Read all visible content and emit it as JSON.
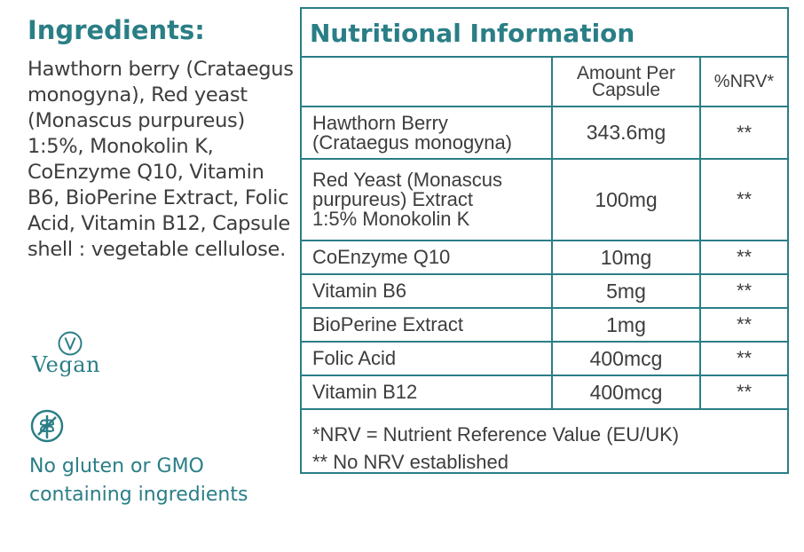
{
  "ingredients": {
    "title": "Ingredients:",
    "text": "Hawthorn berry (Crataegus monogyna), Red yeast (Monascus purpureus) 1:5%, Monokolin K, CoEnzyme Q10, Vitamin B6, BioPerine Extract, Folic Acid, Vitamin B12, Capsule shell : vegetable cellulose."
  },
  "badges": {
    "vegan_label": "Vegan",
    "vegan_icon": "vegan-v-icon",
    "gluten_icon": "wheat-circle-icon",
    "gluten_text": "No gluten or GMO containing ingredients"
  },
  "nutrition": {
    "title": "Nutritional Information",
    "headers": {
      "name": "",
      "amount": "Amount Per Capsule",
      "nrv": "%NRV*"
    },
    "rows": [
      {
        "name": "Hawthorn Berry (Crataegus monogyna)",
        "amount": "343.6mg",
        "nrv": "**"
      },
      {
        "name": "Red Yeast (Monascus purpureus) Extract 1:5% Monokolin K",
        "amount": "100mg",
        "nrv": "**"
      },
      {
        "name": "CoEnzyme Q10",
        "amount": "10mg",
        "nrv": "**"
      },
      {
        "name": "Vitamin B6",
        "amount": "5mg",
        "nrv": "**"
      },
      {
        "name": "BioPerine Extract",
        "amount": "1mg",
        "nrv": "**"
      },
      {
        "name": "Folic Acid",
        "amount": "400mcg",
        "nrv": "**"
      },
      {
        "name": "Vitamin B12",
        "amount": "400mcg",
        "nrv": "**"
      }
    ],
    "footnote_1": "*NRV = Nutrient Reference Value (EU/UK)",
    "footnote_2": "** No NRV established"
  },
  "colors": {
    "accent": "#2a7e86",
    "text": "#3d3d3d"
  }
}
